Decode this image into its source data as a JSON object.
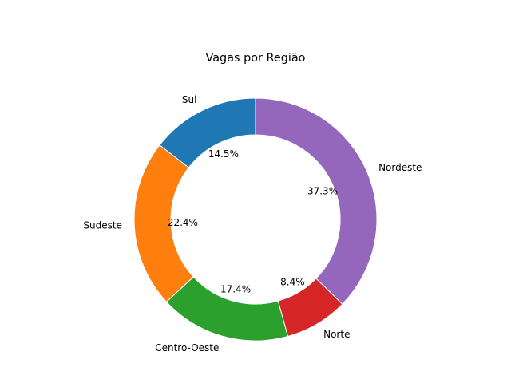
{
  "chart_data": {
    "type": "pie",
    "style": "donut",
    "title": "Vagas por Região",
    "categories": [
      "Sul",
      "Sudeste",
      "Centro-Oeste",
      "Norte",
      "Nordeste"
    ],
    "values": [
      14.5,
      22.4,
      17.4,
      8.4,
      37.3
    ],
    "percent_labels": [
      "14.5%",
      "22.4%",
      "17.4%",
      "8.4%",
      "37.3%"
    ],
    "colors": [
      "#1f77b4",
      "#ff7f0e",
      "#2ca02c",
      "#d62728",
      "#9467bd"
    ],
    "start_angle_deg": 90,
    "direction": "counterclockwise",
    "legend": "none"
  }
}
